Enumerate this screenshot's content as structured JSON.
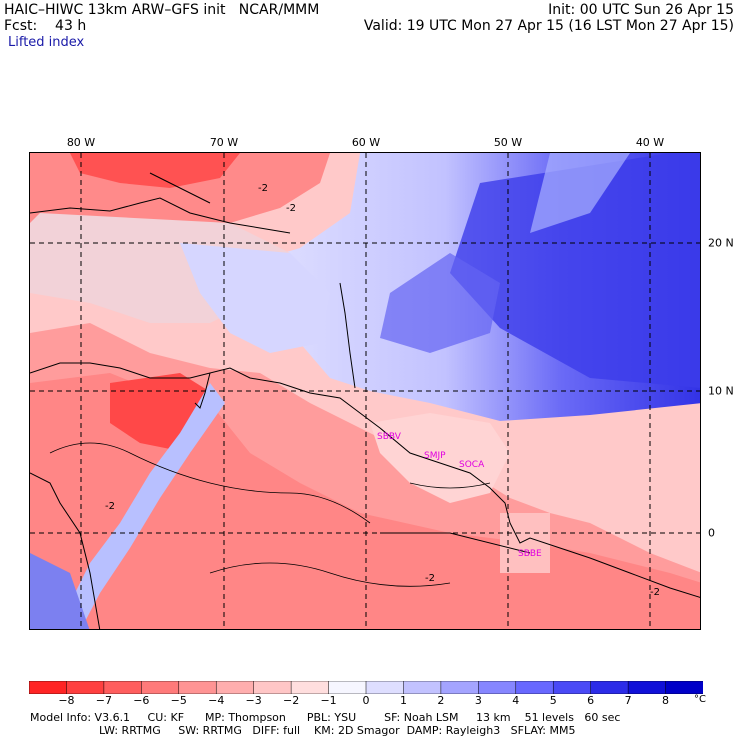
{
  "header": {
    "title": "HAIC–HIWC 13km ARW–GFS init   NCAR/MMM",
    "fcst": "Fcst:    43 h",
    "field": "Lifted index",
    "init": "Init: 00 UTC Sun 26 Apr 15",
    "valid": "Valid: 19 UTC Mon 27 Apr 15 (16 LST Mon 27 Apr 15)"
  },
  "map": {
    "longitude_labels": [
      "80 W",
      "70 W",
      "60 W",
      "50 W",
      "40 W"
    ],
    "latitude_labels": [
      "20 N",
      "10 N",
      "0"
    ],
    "contour_labels": [
      "-2",
      "-2",
      "-2",
      "-2",
      "-2"
    ],
    "stations": [
      "SBBV",
      "SMJP",
      "SOCA",
      "SBBE"
    ]
  },
  "colorbar": {
    "ticks": [
      "−8",
      "−7",
      "−6",
      "−5",
      "−4",
      "−3",
      "−2",
      "−1",
      "0",
      "1",
      "2",
      "3",
      "4",
      "5",
      "6",
      "7",
      "8"
    ],
    "unit": "°C",
    "colors": [
      "#ff2424",
      "#ff4040",
      "#ff5e5e",
      "#ff7a7a",
      "#ff9494",
      "#ffaeae",
      "#ffc6c6",
      "#ffdede",
      "#f6f6ff",
      "#dedeff",
      "#c2c2ff",
      "#a4a4ff",
      "#8686ff",
      "#6868ff",
      "#4a4af6",
      "#2c2ce8",
      "#1010d8",
      "#0000c8"
    ]
  },
  "footer": {
    "line1": "Model Info: V3.6.1     CU: KF      MP: Thompson      PBL: YSU        SF: Noah LSM     13 km    51 levels   60 sec",
    "line2": "LW: RRTMG     SW: RRTMG   DIFF: full    KM: 2D Smagor  DAMP: Rayleigh3   SFLAY: MM5"
  }
}
